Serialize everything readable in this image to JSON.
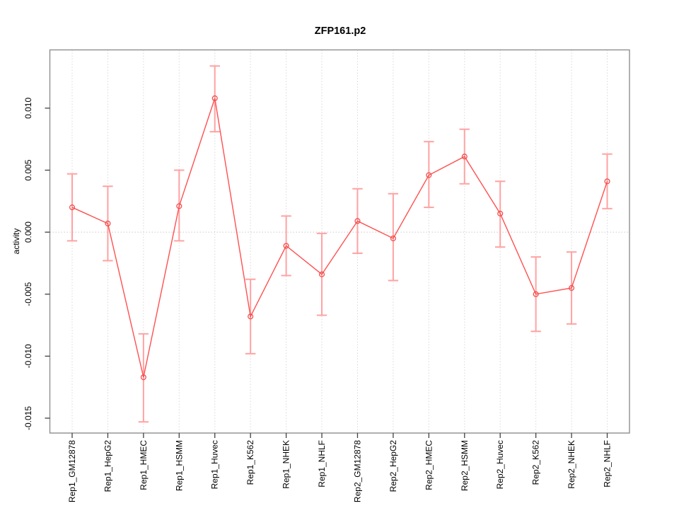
{
  "figure": {
    "title": "ZFP161.p2"
  },
  "chart_data": {
    "type": "line",
    "title": "ZFP161.p2",
    "subtitle": "",
    "xlabel": "",
    "ylabel": "activity",
    "legend": "none",
    "grid": {
      "vertical": "dotted line at every category",
      "horizontal": "dotted line at y=0 only"
    },
    "marker": "open-circle",
    "error_bars": true,
    "categories": [
      "Rep1_GM12878",
      "Rep1_HepG2",
      "Rep1_HMEC",
      "Rep1_HSMM",
      "Rep1_Huvec",
      "Rep1_K562",
      "Rep1_NHEK",
      "Rep1_NHLF",
      "Rep2_GM12878",
      "Rep2_HepG2",
      "Rep2_HMEC",
      "Rep2_HSMM",
      "Rep2_Huvec",
      "Rep2_K562",
      "Rep2_NHEK",
      "Rep2_NHLF"
    ],
    "series": [
      {
        "name": "activity",
        "values": [
          0.002,
          0.0007,
          -0.0117,
          0.0021,
          0.0108,
          -0.0068,
          -0.0011,
          -0.0034,
          0.0009,
          -0.0005,
          0.0046,
          0.0061,
          0.0015,
          -0.005,
          -0.0045,
          0.0041
        ],
        "upper": [
          0.0047,
          0.0037,
          -0.0082,
          0.005,
          0.0134,
          -0.0038,
          0.0013,
          -0.0001,
          0.0035,
          0.0031,
          0.0073,
          0.0083,
          0.0041,
          -0.002,
          -0.0016,
          0.0063
        ],
        "lower": [
          -0.0007,
          -0.0023,
          -0.0153,
          -0.0007,
          0.0081,
          -0.0098,
          -0.0035,
          -0.0067,
          -0.0017,
          -0.0039,
          0.002,
          0.0039,
          -0.0012,
          -0.008,
          -0.0074,
          0.0019
        ]
      }
    ],
    "ylim": [
      -0.0162,
      0.0147
    ],
    "yticks": {
      "values": [
        0.01,
        0.005,
        0.0,
        -0.005,
        -0.01,
        -0.015
      ],
      "labels": [
        "0.010",
        "0.005",
        "0.000",
        "-0.005",
        "-0.010",
        "-0.015"
      ]
    },
    "colors": {
      "line": "#ff5050",
      "error_bar": "#ffa2a2",
      "marker": "#f05050",
      "grid": "#d8d8d8",
      "zero_line": "#c9c9c9",
      "box": "#8f8f8f",
      "tick": "#404040",
      "text": "#000000",
      "background": "#ffffff"
    }
  }
}
